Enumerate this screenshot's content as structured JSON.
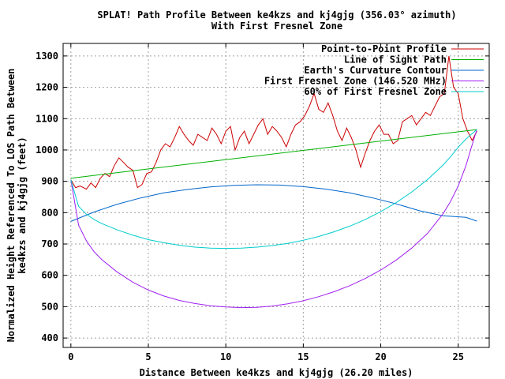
{
  "chart_data": {
    "type": "line",
    "title": "SPLAT! Path Profile Between ke4kzs and kj4gjg (356.03° azimuth)",
    "subtitle": "With First Fresnel Zone",
    "xlabel": "Distance Between ke4kzs and kj4gjg (26.20 miles)",
    "ylabel_line1": "Normalized Height Referenced To LOS Path Between",
    "ylabel_line2": "ke4kzs and kj4gjg (feet)",
    "xlim": [
      -0.5,
      27
    ],
    "ylim": [
      370,
      1340
    ],
    "xticks": [
      0,
      5,
      10,
      15,
      20,
      25
    ],
    "yticks": [
      400,
      500,
      600,
      700,
      800,
      900,
      1000,
      1100,
      1200,
      1300
    ],
    "grid": true,
    "legend_position": "top-right",
    "series": [
      {
        "name": "Point-to-Point Profile",
        "color": "#cc0000",
        "x": [
          0,
          0.3,
          0.6,
          1.0,
          1.3,
          1.6,
          1.9,
          2.2,
          2.5,
          2.8,
          3.1,
          3.4,
          3.7,
          4.0,
          4.3,
          4.6,
          4.9,
          5.2,
          5.5,
          5.8,
          6.1,
          6.4,
          6.7,
          7.0,
          7.3,
          7.6,
          7.9,
          8.2,
          8.5,
          8.8,
          9.1,
          9.4,
          9.7,
          10.0,
          10.3,
          10.6,
          10.9,
          11.2,
          11.5,
          11.8,
          12.1,
          12.4,
          12.7,
          13.0,
          13.3,
          13.6,
          13.9,
          14.2,
          14.5,
          14.8,
          15.1,
          15.4,
          15.7,
          16.0,
          16.3,
          16.6,
          16.9,
          17.2,
          17.5,
          17.8,
          18.1,
          18.4,
          18.7,
          19.0,
          19.3,
          19.6,
          19.9,
          20.2,
          20.5,
          20.8,
          21.1,
          21.4,
          21.7,
          22.0,
          22.3,
          22.6,
          22.9,
          23.2,
          23.5,
          23.8,
          24.1,
          24.4,
          24.7,
          25.0,
          25.3,
          25.6,
          25.9,
          26.2
        ],
        "y": [
          905,
          880,
          885,
          875,
          895,
          880,
          910,
          925,
          915,
          950,
          975,
          960,
          945,
          935,
          880,
          890,
          925,
          930,
          960,
          1000,
          1020,
          1010,
          1040,
          1075,
          1050,
          1030,
          1015,
          1050,
          1040,
          1030,
          1070,
          1050,
          1020,
          1060,
          1075,
          1000,
          1040,
          1060,
          1020,
          1050,
          1080,
          1100,
          1050,
          1075,
          1060,
          1040,
          1010,
          1050,
          1080,
          1090,
          1110,
          1140,
          1180,
          1130,
          1120,
          1150,
          1110,
          1060,
          1030,
          1070,
          1040,
          1000,
          945,
          990,
          1030,
          1060,
          1080,
          1050,
          1050,
          1020,
          1030,
          1090,
          1100,
          1110,
          1080,
          1100,
          1120,
          1110,
          1140,
          1170,
          1180,
          1300,
          1200,
          1180,
          1100,
          1060,
          1030,
          1060
        ]
      },
      {
        "name": "Line of Sight Path",
        "color": "#00b000",
        "x": [
          0,
          26.2
        ],
        "y": [
          910,
          1065
        ]
      },
      {
        "name": "Earth's Curvature Contour",
        "color": "#0066cc",
        "x": [
          0,
          1.5,
          3,
          4.5,
          6,
          7.5,
          9,
          10.5,
          12,
          13.5,
          15,
          16.5,
          18,
          19.5,
          21,
          22.5,
          24,
          25.5,
          26.2
        ],
        "y": [
          772,
          802,
          827,
          847,
          863,
          874,
          882,
          887,
          889,
          888,
          883,
          875,
          863,
          847,
          828,
          806,
          790,
          785,
          773
        ]
      },
      {
        "name": "First Fresnel Zone (146.520 MHz)",
        "color": "#a020f0",
        "x": [
          0,
          0.5,
          1.0,
          1.5,
          2.0,
          3.0,
          4.0,
          5.0,
          6.0,
          7.0,
          8.0,
          9.0,
          10.0,
          11.0,
          12.0,
          13.0,
          14.0,
          15.0,
          16.0,
          17.0,
          18.0,
          19.0,
          20.0,
          21.0,
          22.0,
          23.0,
          24.0,
          24.5,
          25.0,
          25.5,
          25.8,
          26.2
        ],
        "y": [
          905,
          760,
          710,
          675,
          650,
          610,
          578,
          553,
          534,
          520,
          510,
          503,
          499,
          497,
          498,
          502,
          509,
          519,
          532,
          548,
          567,
          590,
          617,
          649,
          687,
          733,
          795,
          835,
          885,
          950,
          1000,
          1065
        ]
      },
      {
        "name": "60% of First Fresnel Zone",
        "color": "#00cccc",
        "x": [
          0,
          0.5,
          1.0,
          1.5,
          2.0,
          3.0,
          4.0,
          5.0,
          6.0,
          7.0,
          8.0,
          9.0,
          10.0,
          11.0,
          12.0,
          13.0,
          14.0,
          15.0,
          16.0,
          17.0,
          18.0,
          19.0,
          20.0,
          21.0,
          22.0,
          23.0,
          24.0,
          24.5,
          25.0,
          25.5,
          25.8,
          26.2
        ],
        "y": [
          905,
          820,
          795,
          778,
          765,
          745,
          728,
          714,
          704,
          696,
          690,
          687,
          686,
          687,
          690,
          695,
          702,
          712,
          724,
          739,
          757,
          778,
          803,
          832,
          866,
          905,
          951,
          978,
          1009,
          1035,
          1048,
          1065
        ]
      }
    ]
  }
}
